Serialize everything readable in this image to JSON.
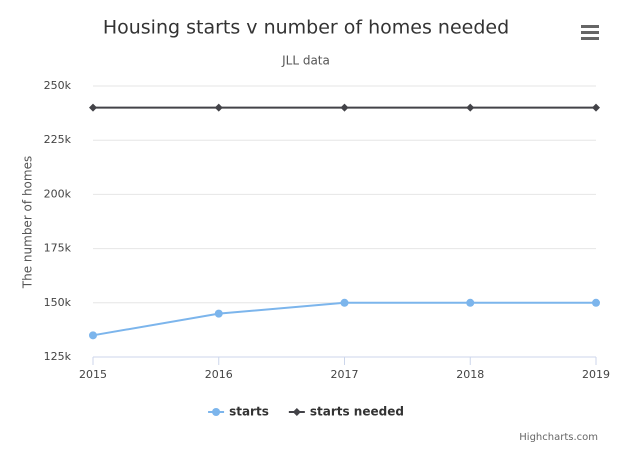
{
  "chart_data": {
    "type": "line",
    "title": "Housing starts v number of homes needed",
    "subtitle": "JLL data",
    "y_axis_label": "The number of homes",
    "x": [
      2015,
      2016,
      2017,
      2018,
      2019
    ],
    "xlim": [
      2015,
      2019
    ],
    "xticks": [
      2015,
      2016,
      2017,
      2018,
      2019
    ],
    "ylim": [
      125000,
      250000
    ],
    "yticks": [
      {
        "value": 125000,
        "label": "125k"
      },
      {
        "value": 150000,
        "label": "150k"
      },
      {
        "value": 175000,
        "label": "175k"
      },
      {
        "value": 200000,
        "label": "200k"
      },
      {
        "value": 225000,
        "label": "225k"
      },
      {
        "value": 250000,
        "label": "250k"
      }
    ],
    "grid": true,
    "legend_position": "bottom",
    "series": [
      {
        "name": "starts",
        "color": "#7cb5ec",
        "marker": "circle",
        "values": [
          135000,
          145000,
          150000,
          150000,
          150000
        ]
      },
      {
        "name": "starts needed",
        "color": "#434348",
        "marker": "diamond",
        "values": [
          240000,
          240000,
          240000,
          240000,
          240000
        ]
      }
    ],
    "credits": "Highcharts.com"
  }
}
